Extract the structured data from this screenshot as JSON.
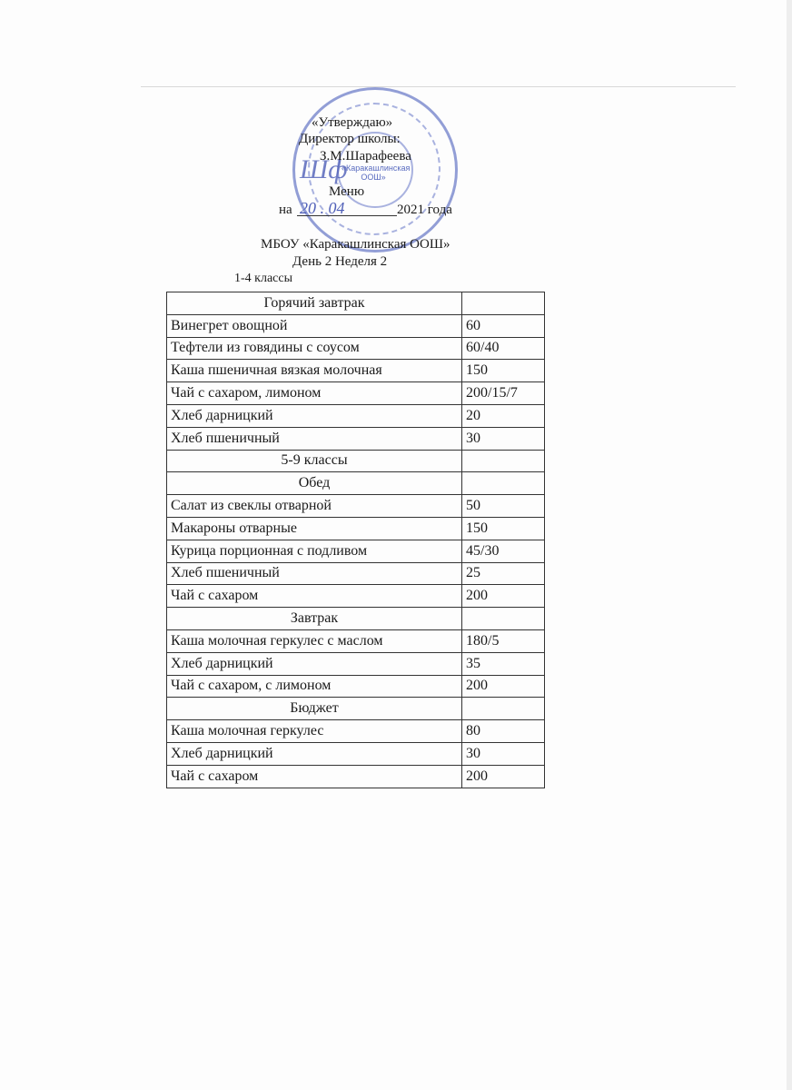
{
  "approval": {
    "line1": "«Утверждаю»",
    "line2": "Директор школы:",
    "line3": "З.М.Шарафеева"
  },
  "stamp": {
    "text": "«Каракашлинская ООШ»",
    "color": "#6f7fc9"
  },
  "title": "Меню",
  "date": {
    "prefix": "на",
    "handwritten": "20 . 04",
    "suffix": "2021 года"
  },
  "school": "МБОУ «Каракашлинская ООШ»",
  "day_week": "День 2 Неделя 2",
  "grades_label": "1-4 классы",
  "rows": [
    {
      "name": "Горячий завтрак",
      "value": "",
      "header": true
    },
    {
      "name": "Винегрет овощной",
      "value": "60"
    },
    {
      "name": "Тефтели из говядины с соусом",
      "value": "60/40"
    },
    {
      "name": "Каша пшеничная вязкая молочная",
      "value": "150"
    },
    {
      "name": "Чай с сахаром, лимоном",
      "value": "200/15/7"
    },
    {
      "name": "Хлеб дарницкий",
      "value": "20"
    },
    {
      "name": "Хлеб пшеничный",
      "value": "30"
    },
    {
      "name": "5-9 классы",
      "value": "",
      "header": true
    },
    {
      "name": "Обед",
      "value": "",
      "header": true
    },
    {
      "name": "Салат из свеклы отварной",
      "value": "50"
    },
    {
      "name": "Макароны отварные",
      "value": "150"
    },
    {
      "name": "Курица порционная с подливом",
      "value": "45/30"
    },
    {
      "name": "Хлеб пшеничный",
      "value": "25"
    },
    {
      "name": "Чай с сахаром",
      "value": "200"
    },
    {
      "name": "Завтрак",
      "value": "",
      "header": true
    },
    {
      "name": "Каша молочная геркулес с маслом",
      "value": "180/5"
    },
    {
      "name": "Хлеб дарницкий",
      "value": "35"
    },
    {
      "name": "Чай с сахаром, с  лимоном",
      "value": "200"
    },
    {
      "name": "Бюджет",
      "value": "",
      "header": true
    },
    {
      "name": "Каша молочная геркулес",
      "value": "80"
    },
    {
      "name": "Хлеб дарницкий",
      "value": "30"
    },
    {
      "name": "Чай с сахаром",
      "value": "200"
    }
  ]
}
